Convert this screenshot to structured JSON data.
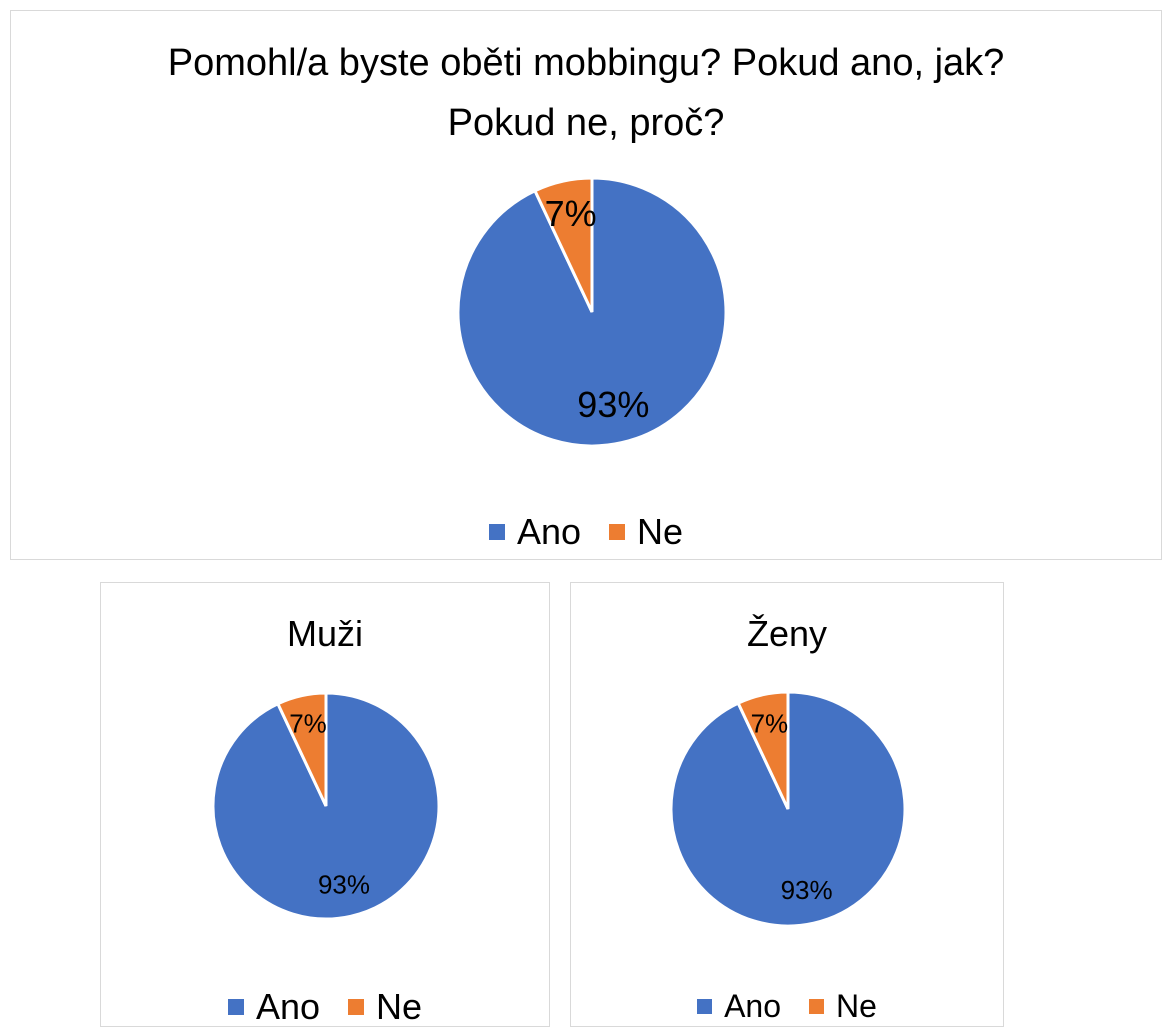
{
  "chart_data": [
    {
      "type": "pie",
      "title": "Pomohl/a byste oběti mobbingu? Pokud ano, jak? Pokud ne, proč?",
      "categories": [
        "Ano",
        "Ne"
      ],
      "values": [
        93,
        7
      ],
      "value_labels": [
        "93%",
        "7%"
      ],
      "colors": [
        "#4472c4",
        "#ed7d31"
      ],
      "legend": "bottom"
    },
    {
      "type": "pie",
      "title": "Muži",
      "categories": [
        "Ano",
        "Ne"
      ],
      "values": [
        93,
        7
      ],
      "value_labels": [
        "93%",
        "7%"
      ],
      "colors": [
        "#4472c4",
        "#ed7d31"
      ],
      "legend": "bottom"
    },
    {
      "type": "pie",
      "title": "Ženy",
      "categories": [
        "Ano",
        "Ne"
      ],
      "values": [
        93,
        7
      ],
      "value_labels": [
        "93%",
        "7%"
      ],
      "colors": [
        "#4472c4",
        "#ed7d31"
      ],
      "legend": "bottom"
    }
  ]
}
